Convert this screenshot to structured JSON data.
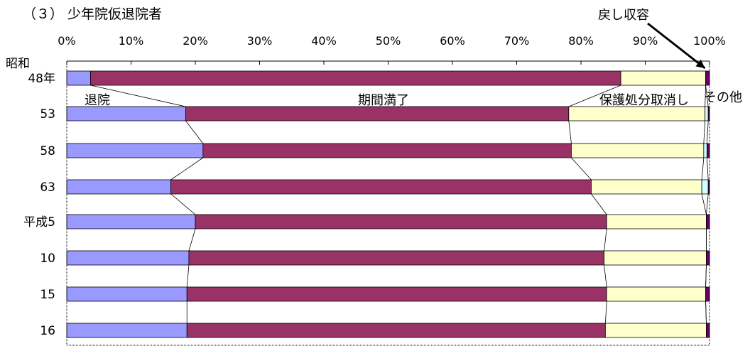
{
  "chart_data": {
    "type": "bar",
    "orientation": "horizontal",
    "stacked": true,
    "percent": true,
    "title": "（３） 少年院仮退院者",
    "xlim": [
      0,
      100
    ],
    "x_ticks": [
      "0%",
      "10%",
      "20%",
      "30%",
      "40%",
      "50%",
      "60%",
      "70%",
      "80%",
      "90%",
      "100%"
    ],
    "categories": [
      {
        "line1": "昭和",
        "line2": "48年"
      },
      {
        "line1": "",
        "line2": "53"
      },
      {
        "line1": "",
        "line2": "58"
      },
      {
        "line1": "",
        "line2": "63"
      },
      {
        "line1": "",
        "line2": "平成5"
      },
      {
        "line1": "",
        "line2": "10"
      },
      {
        "line1": "",
        "line2": "15"
      },
      {
        "line1": "",
        "line2": "16"
      }
    ],
    "series": [
      {
        "name": "退院",
        "color": "#9999ff",
        "values": [
          3.7,
          18.5,
          21.2,
          16.2,
          20.0,
          19.0,
          18.7,
          18.7
        ]
      },
      {
        "name": "期間満了",
        "color": "#993366",
        "values": [
          82.5,
          59.6,
          57.3,
          65.4,
          64.0,
          64.6,
          65.3,
          65.1
        ]
      },
      {
        "name": "保護処分取消し",
        "color": "#ffffcc",
        "values": [
          13.2,
          21.2,
          20.6,
          17.2,
          15.5,
          15.9,
          15.4,
          15.7
        ]
      },
      {
        "name": "戻し収容",
        "color": "#ccffff",
        "values": [
          0.0,
          0.5,
          0.5,
          1.0,
          0.0,
          0.0,
          0.0,
          0.0
        ]
      },
      {
        "name": "その他",
        "color": "#660066",
        "values": [
          0.6,
          0.2,
          0.4,
          0.2,
          0.5,
          0.5,
          0.6,
          0.5
        ]
      }
    ],
    "grid": false,
    "series_lines": true
  }
}
